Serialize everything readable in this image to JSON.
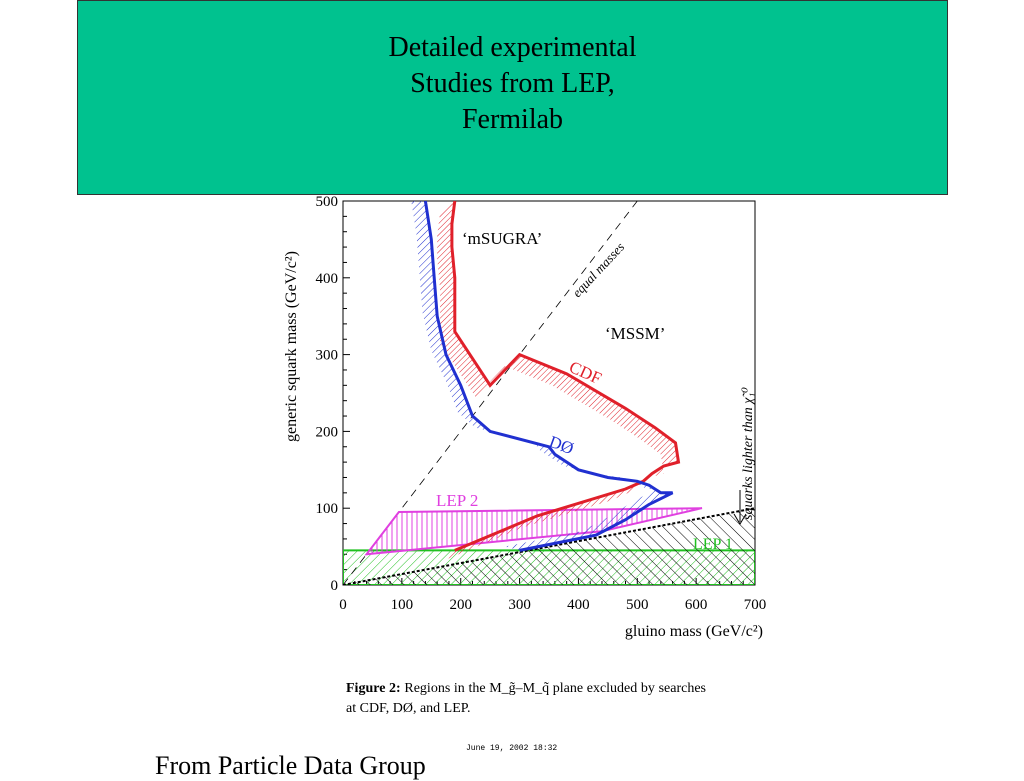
{
  "slide": {
    "title": "Detailed experimental\nStudies from LEP,\nFermilab",
    "source_text": "From Particle Data Group",
    "timestamp": "June 19, 2002   18:32",
    "caption": {
      "label": "Figure 2:",
      "text": "Regions in the M_g̃–M_q̃ plane excluded by searches at CDF, DØ, and LEP."
    }
  },
  "colors": {
    "title_bg": "#00c28f",
    "cdf": "#e0202a",
    "d0": "#2030d0",
    "lep2": "#e040e0",
    "lep1": "#20c020",
    "black": "#000000"
  },
  "chart_data": {
    "type": "area",
    "xlabel": "gluino mass (GeV/c²)",
    "ylabel": "generic squark mass (GeV/c²)",
    "xlim": [
      0,
      700
    ],
    "ylim": [
      0,
      500
    ],
    "xticks": [
      0,
      100,
      200,
      300,
      400,
      500,
      600,
      700
    ],
    "yticks": [
      0,
      100,
      200,
      300,
      400,
      500
    ],
    "series": [
      {
        "name": "CDF",
        "x": [
          190,
          330,
          480,
          510,
          525,
          545,
          570,
          565,
          530,
          480,
          380,
          300,
          250,
          190,
          190,
          185,
          185,
          190
        ],
        "y": [
          45,
          90,
          125,
          135,
          145,
          155,
          160,
          185,
          205,
          230,
          275,
          300,
          260,
          330,
          400,
          440,
          470,
          500
        ]
      },
      {
        "name": "DØ",
        "x": [
          140,
          150,
          155,
          160,
          175,
          200,
          220,
          250,
          350,
          360,
          400,
          450,
          500,
          520,
          530,
          540,
          560,
          520,
          480,
          430,
          300
        ],
        "y": [
          500,
          450,
          400,
          350,
          300,
          260,
          220,
          200,
          180,
          170,
          150,
          140,
          135,
          130,
          125,
          120,
          120,
          105,
          85,
          65,
          45
        ]
      },
      {
        "name": "LEP 2",
        "x": [
          40,
          95,
          610,
          440,
          40
        ],
        "y": [
          40,
          95,
          100,
          70,
          40
        ]
      },
      {
        "name": "LEP 1",
        "x": [
          0,
          700
        ],
        "y": [
          45,
          45
        ]
      }
    ],
    "annotations": [
      "‘mSUGRA’",
      "‘MSSM’",
      "equal masses",
      "squarks lighter than χ̃₁⁰",
      "CDF",
      "DØ",
      "LEP 2",
      "LEP 1"
    ]
  }
}
